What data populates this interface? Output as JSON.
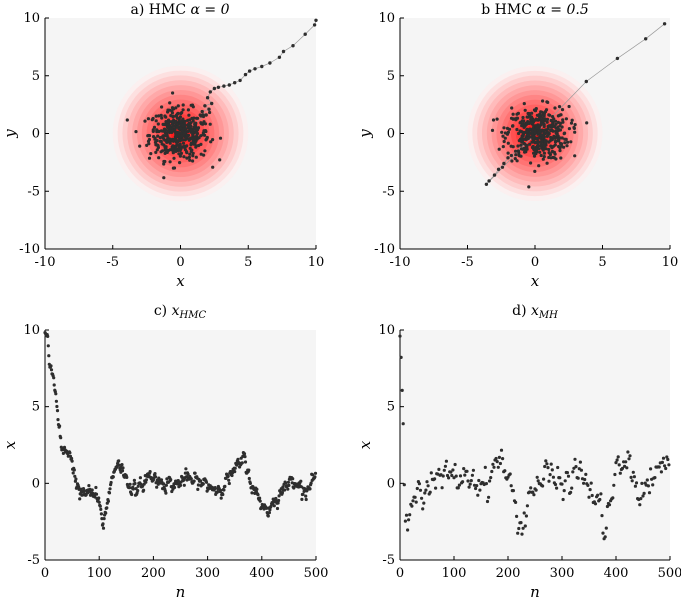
{
  "chart_data": [
    {
      "id": "a",
      "type": "scatter",
      "title": "a) HMC α = 0",
      "xlabel": "x",
      "ylabel": "y",
      "xlim": [
        -10,
        10
      ],
      "ylim": [
        -10,
        10
      ],
      "xticks": [
        -10,
        -5,
        0,
        5,
        10
      ],
      "yticks": [
        -10,
        -5,
        0,
        5,
        10
      ],
      "background": "density-contours",
      "trail_points": [
        [
          10,
          9.8
        ],
        [
          9.9,
          9.4
        ],
        [
          9.2,
          8.6
        ],
        [
          8.3,
          7.6
        ],
        [
          7.6,
          7.1
        ],
        [
          7.3,
          6.6
        ],
        [
          6.6,
          6.1
        ],
        [
          6.0,
          5.8
        ],
        [
          5.5,
          5.6
        ],
        [
          5.1,
          5.4
        ],
        [
          4.8,
          5.1
        ],
        [
          4.4,
          4.6
        ],
        [
          4.0,
          4.4
        ],
        [
          3.6,
          4.2
        ],
        [
          3.2,
          4.1
        ],
        [
          2.8,
          4.0
        ],
        [
          2.5,
          3.9
        ],
        [
          2.2,
          3.6
        ],
        [
          2.0,
          3.1
        ],
        [
          2.3,
          2.6
        ],
        [
          1.8,
          2.4
        ],
        [
          2.1,
          2.1
        ],
        [
          1.6,
          1.9
        ],
        [
          1.9,
          1.6
        ]
      ],
      "cluster": {
        "center": [
          -0.1,
          -0.1
        ],
        "spread": 1.1,
        "count": 420
      }
    },
    {
      "id": "b",
      "type": "scatter",
      "title": "b HMC α = 0.5",
      "xlabel": "x",
      "ylabel": "y",
      "xlim": [
        -10,
        10
      ],
      "ylim": [
        -10,
        10
      ],
      "xticks": [
        -10,
        -5,
        0,
        5,
        10
      ],
      "yticks": [
        -10,
        -5,
        0,
        5,
        10
      ],
      "background": "density-contours",
      "trail_points": [
        [
          9.6,
          9.5
        ],
        [
          8.2,
          8.2
        ],
        [
          6.1,
          6.5
        ],
        [
          3.8,
          4.5
        ],
        [
          -3.6,
          -4.4
        ],
        [
          -3.4,
          -4.1
        ],
        [
          -3.0,
          -3.6
        ],
        [
          -2.7,
          -3.1
        ],
        [
          -2.3,
          -2.6
        ],
        [
          -2.0,
          -2.1
        ]
      ],
      "cluster": {
        "center": [
          0.2,
          0.0
        ],
        "spread": 1.15,
        "count": 420
      }
    },
    {
      "id": "c",
      "type": "scatter",
      "title": "c) x_HMC",
      "xlabel": "n",
      "ylabel": "x",
      "xlim": [
        0,
        500
      ],
      "ylim": [
        -5,
        10
      ],
      "xticks": [
        0,
        100,
        200,
        300,
        400,
        500
      ],
      "yticks": [
        -5,
        0,
        5,
        10
      ],
      "trace_knots": [
        [
          0,
          9.8
        ],
        [
          5,
          9.6
        ],
        [
          8,
          7.7
        ],
        [
          15,
          7.0
        ],
        [
          20,
          5.8
        ],
        [
          25,
          3.6
        ],
        [
          32,
          2.0
        ],
        [
          45,
          2.2
        ],
        [
          55,
          0.5
        ],
        [
          65,
          -0.8
        ],
        [
          80,
          -0.6
        ],
        [
          95,
          -0.8
        ],
        [
          108,
          -2.7
        ],
        [
          120,
          -0.2
        ],
        [
          135,
          1.6
        ],
        [
          150,
          0.2
        ],
        [
          170,
          -0.6
        ],
        [
          190,
          0.5
        ],
        [
          210,
          0.2
        ],
        [
          240,
          -0.1
        ],
        [
          260,
          0.3
        ],
        [
          290,
          0.0
        ],
        [
          320,
          -0.4
        ],
        [
          350,
          0.8
        ],
        [
          368,
          1.6
        ],
        [
          385,
          -0.5
        ],
        [
          410,
          -1.8
        ],
        [
          430,
          -0.8
        ],
        [
          460,
          0.4
        ],
        [
          480,
          -0.6
        ],
        [
          500,
          0.5
        ]
      ],
      "noise_amplitude": 0.45,
      "count": 500
    },
    {
      "id": "d",
      "type": "scatter",
      "title": "d) x_MH",
      "xlabel": "n",
      "ylabel": "x",
      "xlim": [
        0,
        500
      ],
      "ylim": [
        -5,
        10
      ],
      "xticks": [
        0,
        100,
        200,
        300,
        400,
        500
      ],
      "yticks": [
        -5,
        0,
        5,
        10
      ],
      "trace_knots": [
        [
          0,
          9.6
        ],
        [
          2,
          8.2
        ],
        [
          4,
          6.0
        ],
        [
          6,
          3.8
        ],
        [
          10,
          -2.5
        ],
        [
          15,
          -3.5
        ],
        [
          25,
          0.8
        ],
        [
          40,
          -0.5
        ],
        [
          60,
          0.0
        ],
        [
          90,
          0.3
        ],
        [
          130,
          0.5
        ],
        [
          160,
          0.0
        ],
        [
          185,
          1.8
        ],
        [
          200,
          0.2
        ],
        [
          225,
          -3.0
        ],
        [
          240,
          -0.5
        ],
        [
          270,
          0.5
        ],
        [
          300,
          -0.2
        ],
        [
          330,
          0.8
        ],
        [
          360,
          -0.8
        ],
        [
          380,
          -2.8
        ],
        [
          400,
          0.4
        ],
        [
          420,
          1.5
        ],
        [
          440,
          -0.5
        ],
        [
          470,
          0.2
        ],
        [
          490,
          1.2
        ],
        [
          500,
          1.8
        ]
      ],
      "noise_amplitude": 1.0,
      "count": 250
    }
  ],
  "titles": {
    "a_prefix": "a) HMC ",
    "a_suffix": "α = 0",
    "b_prefix": "b HMC ",
    "b_suffix": "α = 0.5",
    "c_prefix": "c) ",
    "c_sym": "x",
    "c_sub": "HMC",
    "d_prefix": "d) ",
    "d_sym": "x",
    "d_sub": "MH"
  },
  "colors": {
    "points": "#2e2e2e",
    "trail_line": "#9a9a9a",
    "density_core": "#ff0000",
    "plot_background": "#f5f5f5"
  }
}
